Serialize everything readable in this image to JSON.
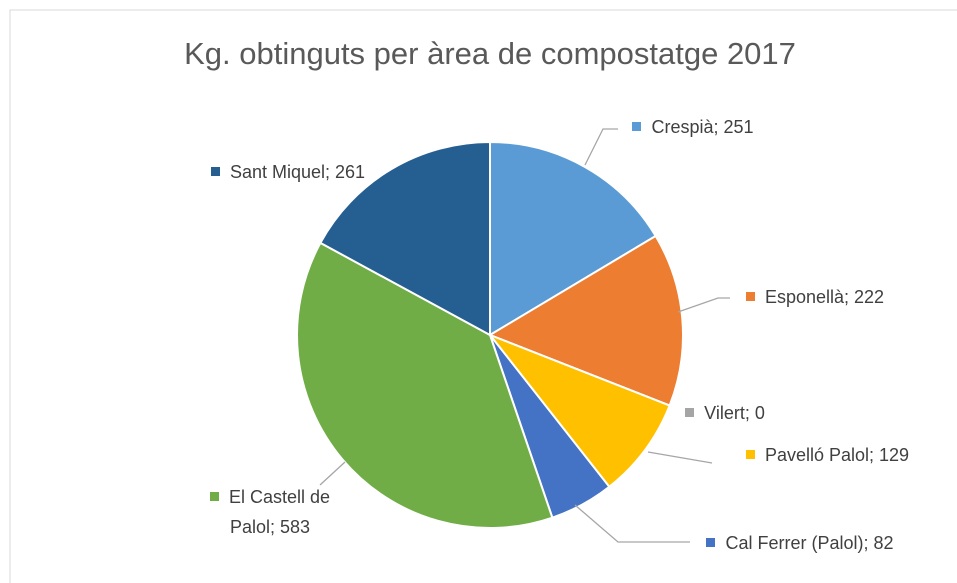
{
  "chart_data": {
    "type": "pie",
    "title": "Kg. obtinguts per àrea de compostatge 2017",
    "categories": [
      "Crespià",
      "Esponellà",
      "Vilert",
      "Pavelló Palol",
      "Cal Ferrer (Palol)",
      "El Castell de Palol",
      "Sant Miquel"
    ],
    "values": [
      251,
      222,
      0,
      129,
      82,
      583,
      261
    ],
    "colors": [
      "#5b9bd5",
      "#ed7d31",
      "#a5a5a5",
      "#ffc000",
      "#4472c4",
      "#70ad47",
      "#255e91"
    ],
    "label_separator": "; "
  }
}
